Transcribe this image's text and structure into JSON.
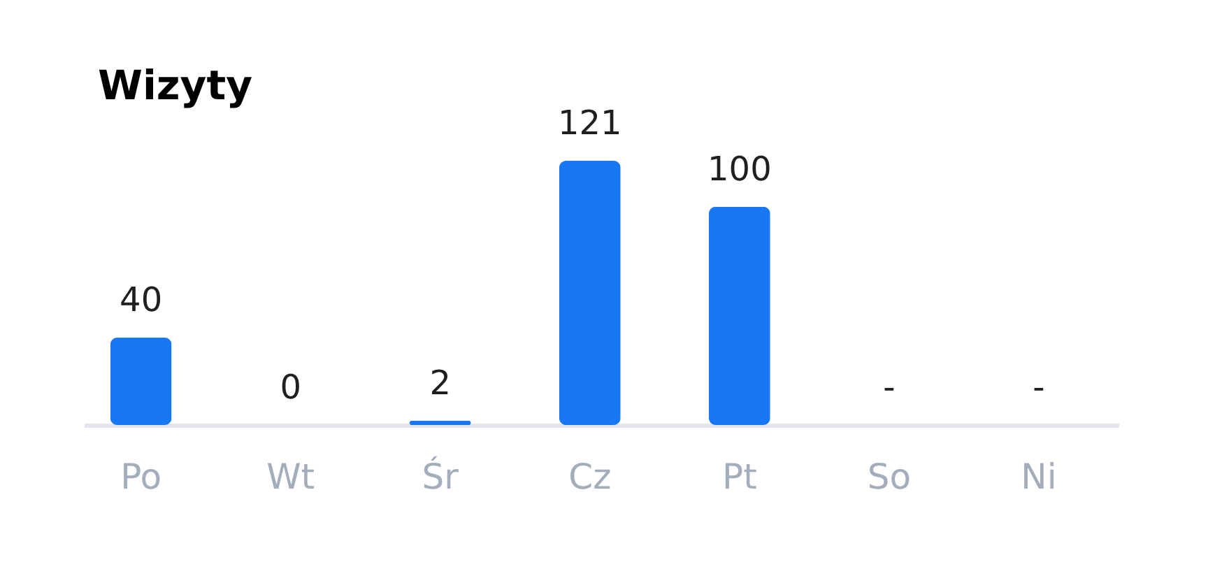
{
  "chart_data": {
    "type": "bar",
    "title": "Wizyty",
    "categories": [
      "Po",
      "Wt",
      "Śr",
      "Cz",
      "Pt",
      "So",
      "Ni"
    ],
    "values": [
      40,
      0,
      2,
      121,
      100,
      null,
      null
    ],
    "color": "#1877f2",
    "value_labels": [
      "40",
      "0",
      "2",
      "121",
      "100",
      "-",
      "-"
    ],
    "tick_labels": "x"
  }
}
